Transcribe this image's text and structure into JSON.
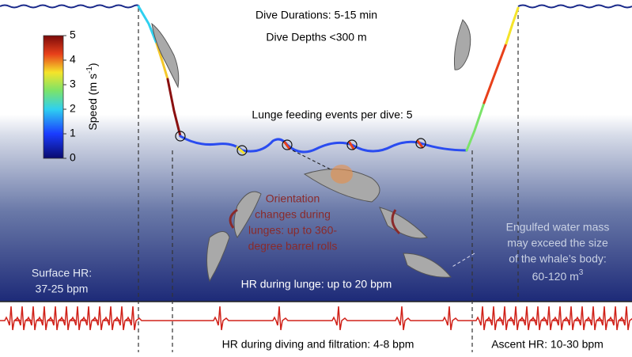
{
  "colorbar": {
    "label": "Speed (m s",
    "label_superscript": "-1",
    "label_end": ")",
    "ticks": [
      0,
      1,
      2,
      3,
      4,
      5
    ]
  },
  "header": {
    "durations": "Dive Durations: 5-15 min",
    "depths": "Dive Depths <300 m"
  },
  "lunge_events": "Lunge feeding events per dive: 5",
  "orientation": {
    "lines": [
      "Orientation",
      "changes during",
      "lunges: up to 360-",
      "degree barrel rolls"
    ]
  },
  "engulfed": {
    "lines": [
      "Engulfed water mass",
      "may exceed the size",
      "of the whale’s body:"
    ],
    "value": "60-120 m",
    "superscript": "3"
  },
  "surface_hr": {
    "lines": [
      "Surface HR:",
      "37-25 bpm"
    ]
  },
  "lunge_hr": "HR during lunge: up to 20 bpm",
  "diving_hr": "HR during diving and filtration: 4-8 bpm",
  "ascent_hr": "Ascent HR: 10-30 bpm"
}
